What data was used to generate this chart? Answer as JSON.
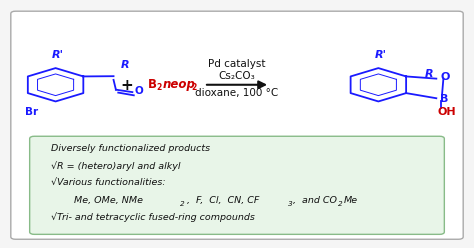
{
  "fig_width": 4.74,
  "fig_height": 2.48,
  "dpi": 100,
  "bg_color": "#f5f5f5",
  "box_bg": "#ffffff",
  "box_edge": "#aaaaaa",
  "green_box_bg": "#e8f5e8",
  "green_box_edge": "#88bb88",
  "blue_color": "#1a1aff",
  "red_color": "#cc0000",
  "black_color": "#111111",
  "arrow_color": "#222222",
  "reaction_text_line1": "Pd catalyst",
  "reaction_text_line2": "Cs₂CO₃",
  "reaction_text_line3": "dioxane, 100 °C",
  "green_lines": [
    "Diversely functionalized products",
    "√R = (hetero)aryl and alkyl",
    "√Various functionalities:",
    "   Me, OMe, NMe₂, F,  Cl,  CN, CF₃, and CO₂Me",
    "√Tri- and tetracyclic fused-ring compounds"
  ],
  "font_size_reaction": 7.5,
  "font_size_green": 6.8
}
